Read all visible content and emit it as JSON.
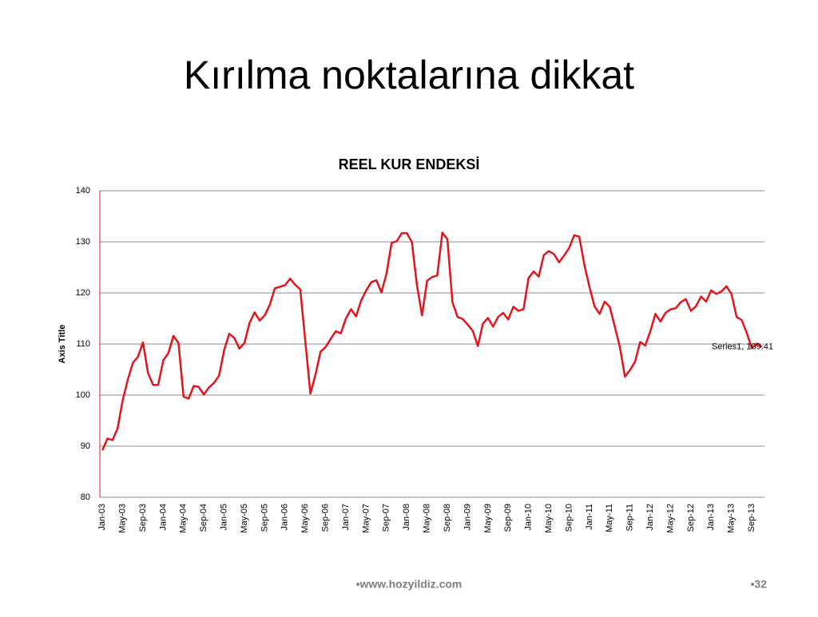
{
  "slide": {
    "title": "Kırılma noktalarına dikkat",
    "footer": "•www.hozyildiz.com",
    "page_number": "•32"
  },
  "chart_data": {
    "type": "line",
    "title": "REEL KUR ENDEKSİ",
    "y_label": "Axis Title",
    "categories": [
      "Jan-03",
      null,
      null,
      null,
      "May-03",
      null,
      null,
      null,
      "Sep-03",
      null,
      null,
      null,
      "Jan-04",
      null,
      null,
      null,
      "May-04",
      null,
      null,
      null,
      "Sep-04",
      null,
      null,
      null,
      "Jan-05",
      null,
      null,
      null,
      "May-05",
      null,
      null,
      null,
      "Sep-05",
      null,
      null,
      null,
      "Jan-06",
      null,
      null,
      null,
      "May-06",
      null,
      null,
      null,
      "Sep-06",
      null,
      null,
      null,
      "Jan-07",
      null,
      null,
      null,
      "May-07",
      null,
      null,
      null,
      "Sep-07",
      null,
      null,
      null,
      "Jan-08",
      null,
      null,
      null,
      "May-08",
      null,
      null,
      null,
      "Sep-08",
      null,
      null,
      null,
      "Jan-09",
      null,
      null,
      null,
      "May-09",
      null,
      null,
      null,
      "Sep-09",
      null,
      null,
      null,
      "Jan-10",
      null,
      null,
      null,
      "May-10",
      null,
      null,
      null,
      "Sep-10",
      null,
      null,
      null,
      "Jan-11",
      null,
      null,
      null,
      "May-11",
      null,
      null,
      null,
      "Sep-11",
      null,
      null,
      null,
      "Jan-12",
      null,
      null,
      null,
      "May-12",
      null,
      null,
      null,
      "Sep-12",
      null,
      null,
      null,
      "Jan-13",
      null,
      null,
      null,
      "May-13",
      null,
      null,
      null,
      "Sep-13",
      null,
      null
    ],
    "values": [
      89.2,
      91.5,
      91.2,
      93.5,
      99,
      103,
      106.3,
      107.5,
      110.3,
      104.3,
      102,
      102,
      106.8,
      108.2,
      111.6,
      110.2,
      99.7,
      99.3,
      101.8,
      101.6,
      100.1,
      101.5,
      102.4,
      103.8,
      108.8,
      112,
      111.2,
      109.1,
      110.2,
      114.1,
      116.2,
      114.6,
      115.6,
      117.7,
      120.9,
      121.2,
      121.5,
      122.8,
      121.6,
      120.7,
      110.5,
      100.3,
      104,
      108.5,
      109.4,
      111,
      112.5,
      112.1,
      115,
      116.8,
      115.4,
      118.5,
      120.5,
      122.1,
      122.5,
      120.1,
      123.8,
      129.8,
      130.1,
      131.7,
      131.7,
      130,
      121.5,
      115.6,
      122.4,
      123.1,
      123.4,
      131.8,
      130.5,
      118.2,
      115.3,
      114.9,
      113.8,
      112.6,
      109.6,
      114,
      115.1,
      113.4,
      115.3,
      116.1,
      114.8,
      117.3,
      116.5,
      116.8,
      122.9,
      124.2,
      123.2,
      127.4,
      128.2,
      127.6,
      126,
      127.3,
      128.8,
      131.3,
      131,
      125.5,
      121.2,
      117.4,
      115.9,
      118.3,
      117.3,
      113.4,
      109.4,
      103.6,
      104.9,
      106.6,
      110.4,
      109.7,
      112.5,
      115.9,
      114.4,
      116.1,
      116.8,
      117,
      118.2,
      118.8,
      116.5,
      117.4,
      119.3,
      118.3,
      120.5,
      119.8,
      120.3,
      121.3,
      119.8,
      115.3,
      114.7,
      112.2,
      109.2,
      110.1,
      109.41
    ],
    "color": "#e3141b",
    "annotation": "Series1, 109.41",
    "ylim": [
      80,
      140
    ],
    "yticks": [
      80,
      90,
      100,
      110,
      120,
      130,
      140
    ],
    "grid": true
  }
}
